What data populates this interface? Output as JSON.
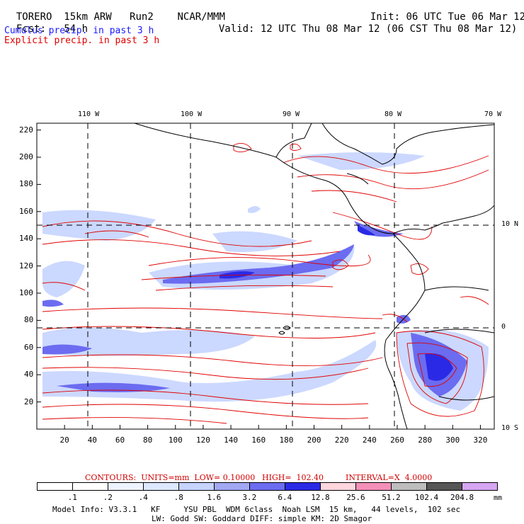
{
  "header": {
    "model": "TORERO",
    "resolution": "15km ARW",
    "run": "Run2",
    "center": "NCAR/MMM",
    "init_label": "Init:",
    "init": "06 UTC Tue 06 Mar 12",
    "fcst_label": "Fcst:",
    "fcst": "54 h",
    "valid_label": "Valid:",
    "valid": "12 UTC Thu 08 Mar 12 (06 CST Thu 08 Mar 12)"
  },
  "fields": {
    "cumulus": "Cumulus precip. in past 3 h",
    "explicit": "Explicit precip. in past 3 h"
  },
  "axes": {
    "top_lon": [
      "110 W",
      "100 W",
      "90 W",
      "80 W",
      "70 W"
    ],
    "right_lat": [
      "10 N",
      "0",
      "10 S"
    ],
    "x_ticks": [
      "20",
      "40",
      "60",
      "80",
      "100",
      "120",
      "140",
      "160",
      "180",
      "200",
      "220",
      "240",
      "260",
      "280",
      "300",
      "320"
    ],
    "y_ticks": [
      "220",
      "200",
      "180",
      "160",
      "140",
      "120",
      "100",
      "80",
      "60",
      "40",
      "20"
    ]
  },
  "contours": {
    "units": "CONTOURS:  UNITS=mm  LOW= 0.10000",
    "high": "HIGH=  102.40",
    "interval": "INTERVAL=X  4.0000"
  },
  "colorbar": {
    "unit": "mm",
    "labels": [
      ".1",
      ".2",
      ".4",
      ".8",
      "1.6",
      "3.2",
      "6.4",
      "12.8",
      "25.6",
      "51.2",
      "102.4",
      "204.8"
    ],
    "colors": [
      "#ffffff",
      "#ffffff",
      "#eef4ff",
      "#dde8ff",
      "#c6d4ff",
      "#a3a8f5",
      "#6b6cf0",
      "#2a2ae6",
      "#ffd6dd",
      "#f490b8",
      "#bdbdbd",
      "#555555",
      "#d6a6f2"
    ]
  },
  "footer": {
    "line1": "Model Info: V3.3.1   KF     YSU PBL  WDM 6class  Noah LSM  15 km,   44 levels,  102 sec",
    "line2": "LW: Godd SW: Goddard DIFF: simple KM: 2D Smagor"
  }
}
